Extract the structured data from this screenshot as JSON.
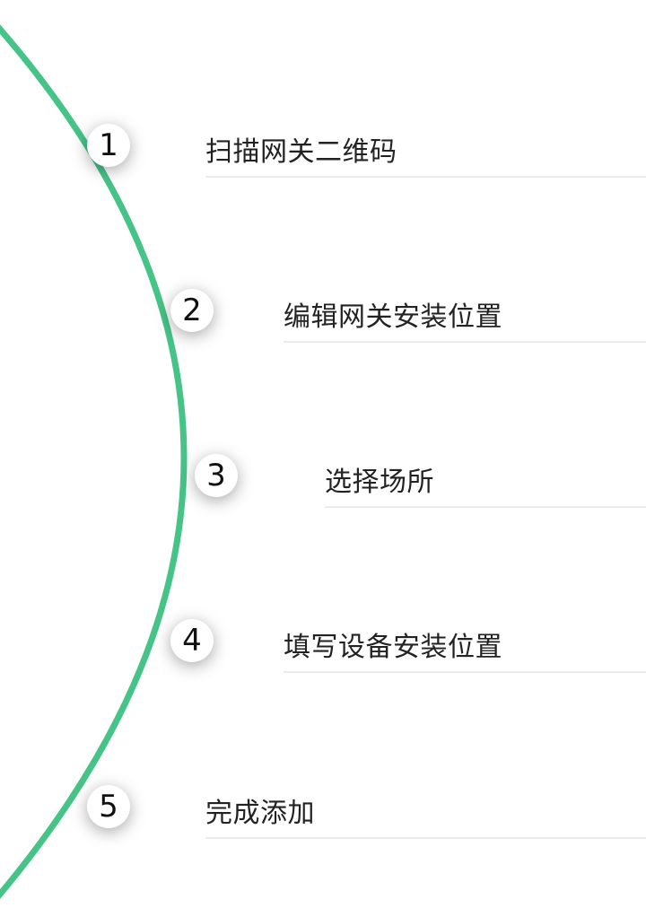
{
  "steps": [
    {
      "number": "1",
      "label": "扫描网关二维码"
    },
    {
      "number": "2",
      "label": "编辑网关安装位置"
    },
    {
      "number": "3",
      "label": "选择场所"
    },
    {
      "number": "4",
      "label": "填写设备安装位置"
    },
    {
      "number": "5",
      "label": "完成添加"
    }
  ],
  "colors": {
    "arc": "#46c487",
    "badge": "#ffffff",
    "divider": "#ebebeb"
  }
}
